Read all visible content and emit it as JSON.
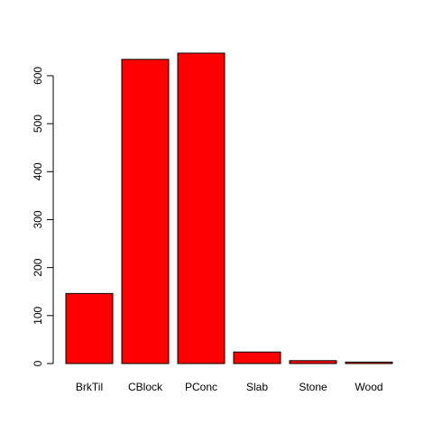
{
  "chart_data": {
    "type": "bar",
    "categories": [
      "BrkTil",
      "CBlock",
      "PConc",
      "Slab",
      "Stone",
      "Wood"
    ],
    "values": [
      146,
      634,
      647,
      24,
      6,
      3
    ],
    "ylim": [
      0,
      647
    ],
    "yticks": [
      0,
      100,
      200,
      300,
      400,
      500,
      600
    ],
    "ytick_labels": [
      "0",
      "100",
      "200",
      "300",
      "400",
      "500",
      "600"
    ],
    "title": "",
    "xlabel": "",
    "ylabel": "",
    "grid": false,
    "bar_color": "#ff0000",
    "bar_stroke": "#000000"
  }
}
